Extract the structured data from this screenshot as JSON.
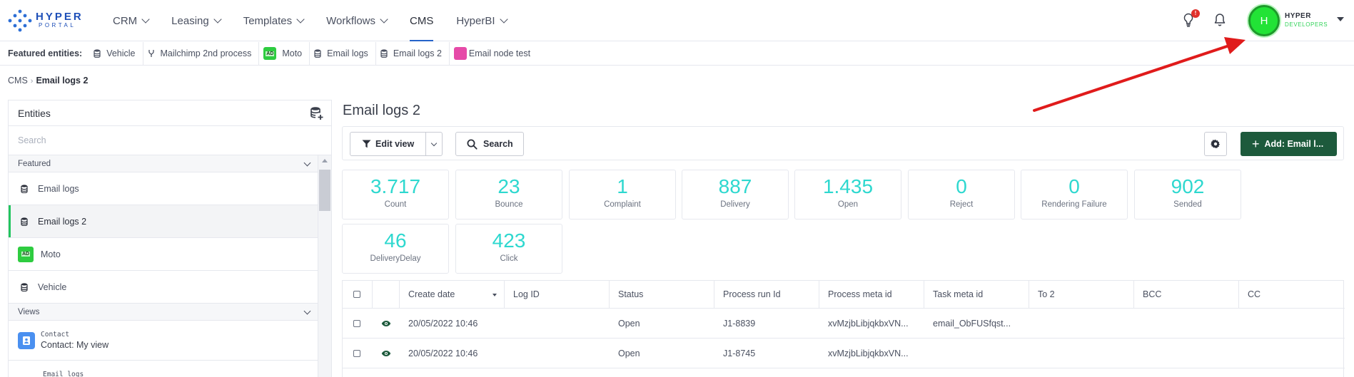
{
  "brand": {
    "line1": "HYPER",
    "line2": "PORTAL"
  },
  "nav": [
    {
      "label": "CRM",
      "dropdown": true
    },
    {
      "label": "Leasing",
      "dropdown": true
    },
    {
      "label": "Templates",
      "dropdown": true
    },
    {
      "label": "Workflows",
      "dropdown": true
    },
    {
      "label": "CMS",
      "dropdown": false,
      "active": true
    },
    {
      "label": "HyperBI",
      "dropdown": true
    }
  ],
  "user": {
    "initial": "H",
    "name": "HYPER",
    "org": "DEVELOPERS",
    "notification_count": "!"
  },
  "featured": {
    "label": "Featured entities:",
    "items": [
      {
        "label": "Vehicle",
        "icon": "database-icon"
      },
      {
        "label": "Mailchimp 2nd process",
        "icon": "process-fork-icon"
      },
      {
        "label": "Moto",
        "icon": "moto-badge-icon"
      },
      {
        "label": "Email logs",
        "icon": "database-icon"
      },
      {
        "label": "Email logs 2",
        "icon": "database-icon"
      },
      {
        "label": "Email node test",
        "icon": "pink-square-icon"
      }
    ]
  },
  "breadcrumb": {
    "root": "CMS",
    "sep": "›",
    "current": "Email logs 2"
  },
  "panel": {
    "title": "Entities",
    "search_placeholder": "Search",
    "featured_section": "Featured",
    "featured_items": [
      {
        "label": "Email logs",
        "icon": "database-icon",
        "active": false
      },
      {
        "label": "Email logs 2",
        "icon": "database-icon",
        "active": true
      },
      {
        "label": "Moto",
        "icon": "moto-badge-icon",
        "active": false
      },
      {
        "label": "Vehicle",
        "icon": "database-icon",
        "active": false
      }
    ],
    "views_section": "Views",
    "views": [
      {
        "small": "Contact",
        "label": "Contact: My view"
      },
      {
        "small": "Email logs"
      }
    ]
  },
  "main": {
    "title": "Email logs 2",
    "edit_view": "Edit view",
    "search": "Search",
    "add_button": "Add: Email l...",
    "stats": [
      {
        "value": "3.717",
        "label": "Count"
      },
      {
        "value": "23",
        "label": "Bounce"
      },
      {
        "value": "1",
        "label": "Complaint"
      },
      {
        "value": "887",
        "label": "Delivery"
      },
      {
        "value": "1.435",
        "label": "Open"
      },
      {
        "value": "0",
        "label": "Reject"
      },
      {
        "value": "0",
        "label": "Rendering Failure"
      },
      {
        "value": "902",
        "label": "Sended"
      },
      {
        "value": "46",
        "label": "DeliveryDelay"
      },
      {
        "value": "423",
        "label": "Click"
      }
    ],
    "table": {
      "columns": [
        "Create date",
        "Log ID",
        "Status",
        "Process run Id",
        "Process meta id",
        "Task meta id",
        "To 2",
        "BCC",
        "CC"
      ],
      "rows": [
        [
          "20/05/2022 10:46",
          "",
          "Open",
          "J1-8839",
          "xvMzjbLibjqkbxVN...",
          "email_ObFUSfqst...",
          "",
          "",
          ""
        ],
        [
          "20/05/2022 10:46",
          "",
          "Open",
          "J1-8745",
          "xvMzjbLibjqkbxVN...",
          "",
          "",
          "",
          ""
        ]
      ]
    }
  },
  "colors": {
    "accent": "#2563c9",
    "stat_value": "#2ed8cf",
    "add_button": "#1d5a3c",
    "active_marker": "#22c55e",
    "annotation_arrow": "#e01b1b"
  }
}
